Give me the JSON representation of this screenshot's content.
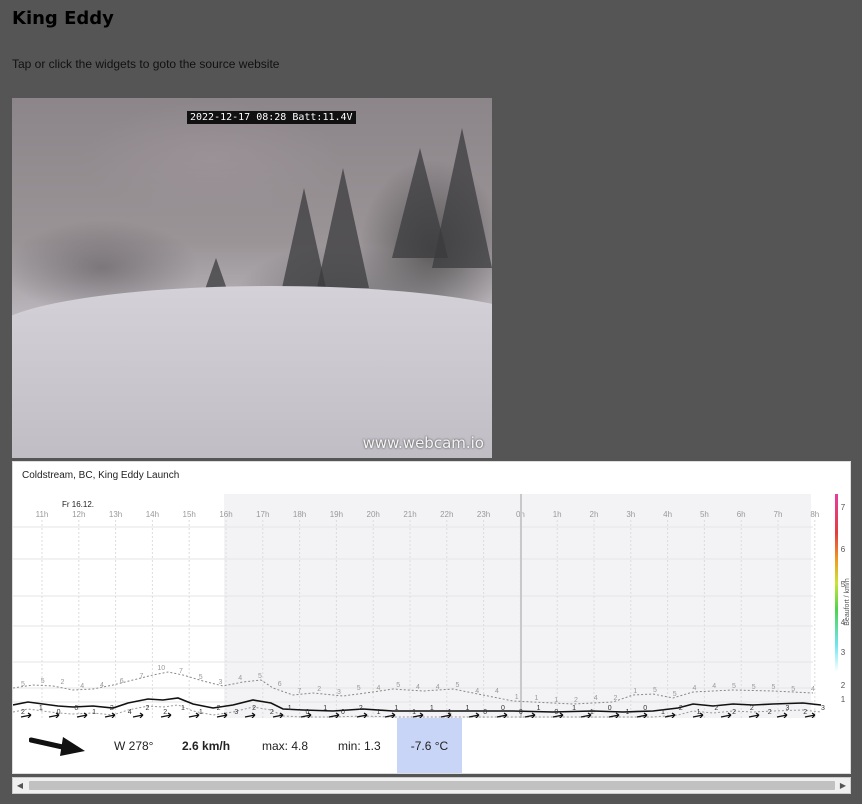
{
  "page": {
    "title": "King Eddy",
    "subtitle": "Tap or click the widgets to goto the source website"
  },
  "webcam": {
    "timestamp": "2022-12-17 08:28 Batt:11.4V",
    "watermark": "www.webcam.io"
  },
  "wind_widget": {
    "station": "Coldstream, BC, King Eddy Launch",
    "date_label": "Fr 16.12.",
    "scale_label": "Beaufort / km/h",
    "direction": "W 278°",
    "speed": "2.6 km/h",
    "max": "max: 4.8",
    "min": "min: 1.3",
    "temperature": "-7.6 °C",
    "colors": {
      "temp_bg": "#c8d5f6",
      "night_shade": "#f3f3f6"
    }
  },
  "chart_data": {
    "type": "line",
    "x": [
      "11h",
      "12h",
      "13h",
      "14h",
      "15h",
      "16h",
      "17h",
      "18h",
      "19h",
      "20h",
      "21h",
      "22h",
      "23h",
      "0h",
      "1h",
      "2h",
      "3h",
      "4h",
      "5h",
      "6h",
      "7h",
      "8h"
    ],
    "y_ticks": [
      "1",
      "2",
      "3",
      "4",
      "5",
      "6",
      "7"
    ],
    "series": [],
    "ylim": [
      0,
      7
    ],
    "gust_labels": [
      "5",
      "5",
      "2",
      "4",
      "4",
      "6",
      "7",
      "10",
      "7",
      "5",
      "3",
      "4",
      "5",
      "6",
      "7",
      "2",
      "3",
      "5",
      "4",
      "5",
      "4",
      "4",
      "5",
      "4",
      "4",
      "1",
      "1",
      "1",
      "2",
      "4",
      "2",
      "1",
      "5",
      "5",
      "4",
      "4",
      "5",
      "5",
      "5",
      "5",
      "4"
    ],
    "avg_labels": [
      "2",
      "1",
      "0",
      "0",
      "1",
      "2",
      "4",
      "2",
      "2",
      "1",
      "1",
      "2",
      "3",
      "2",
      "2",
      "1",
      "0",
      "1",
      "0",
      "2",
      "1",
      "1",
      "1",
      "1",
      "1",
      "1",
      "0",
      "0",
      "0",
      "1",
      "0",
      "1",
      "1",
      "0",
      "1",
      "0",
      "1",
      "2",
      "1",
      "2",
      "2",
      "2",
      "2",
      "3",
      "2",
      "3"
    ]
  }
}
